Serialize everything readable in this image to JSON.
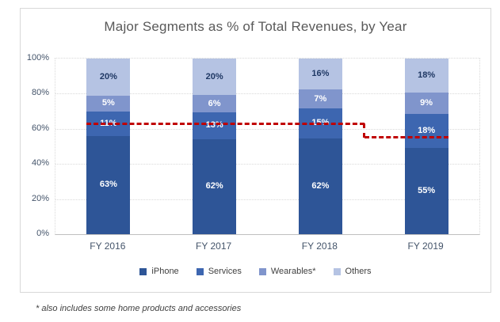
{
  "footnote": "* also includes some home products and accessories",
  "chart_data": {
    "type": "bar",
    "stacked": true,
    "percent": true,
    "title": "Major Segments as % of Total Revenues, by Year",
    "categories": [
      "FY 2016",
      "FY 2017",
      "FY 2018",
      "FY 2019"
    ],
    "series": [
      {
        "name": "iPhone",
        "values": [
          63,
          62,
          62,
          55
        ],
        "color": "#2E5597",
        "label_color": "#FFFFFF"
      },
      {
        "name": "Services",
        "values": [
          11,
          13,
          15,
          18
        ],
        "color": "#3D66B0",
        "label_color": "#FFFFFF"
      },
      {
        "name": "Wearables*",
        "values": [
          5,
          6,
          7,
          9
        ],
        "color": "#8095CC",
        "label_color": "#FFFFFF"
      },
      {
        "name": "Others",
        "values": [
          20,
          20,
          16,
          18
        ],
        "color": "#B5C3E3",
        "label_color": "#1F3864"
      }
    ],
    "y_ticks": [
      "0%",
      "20%",
      "40%",
      "60%",
      "80%",
      "100%"
    ],
    "ylim": [
      0,
      100
    ],
    "grid": true,
    "legend_position": "bottom",
    "reference_line": {
      "tracks_series": "iPhone",
      "value_high": 63,
      "value_low": 55,
      "drops_before_category": "FY 2019",
      "color": "#C00000",
      "style": "dashed"
    }
  }
}
